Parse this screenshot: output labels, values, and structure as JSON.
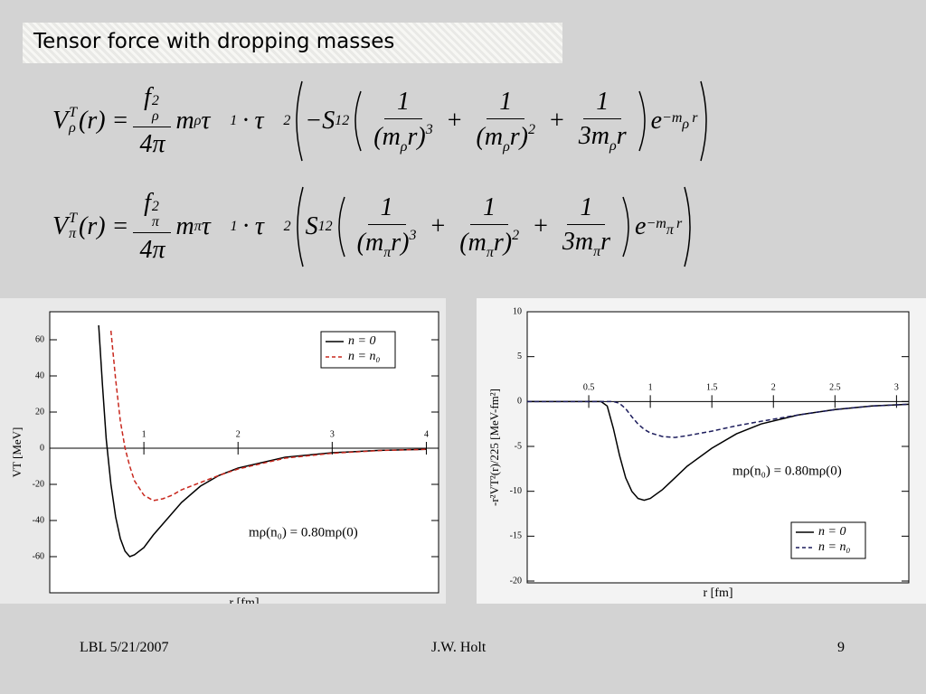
{
  "slide": {
    "title": "Tensor force with dropping masses",
    "footer": {
      "left": "LBL 5/21/2007",
      "center": "J.W. Holt",
      "right": "9"
    }
  },
  "equations": [
    {
      "lhs": "V",
      "lhs_sup": "T",
      "sub": "ρ",
      "arg": "(r) =",
      "coupling": "f",
      "square": "2",
      "denominator": "4π",
      "mass": "m",
      "tau": "τ⃗",
      "one": "1",
      "dot": "·",
      "two": "2",
      "operator": "−S",
      "operator_sub": "12",
      "open": "(m",
      "close": "r)",
      "cube": "3",
      "plus": "+",
      "three_m": "3m",
      "r": "r",
      "exp_base": "e",
      "exp_mass": "−m"
    },
    {
      "lhs": "V",
      "lhs_sup": "T",
      "sub": "π",
      "arg": "(r) =",
      "coupling": "f",
      "square": "2",
      "denominator": "4π",
      "mass": "m",
      "tau": "τ⃗",
      "one": "1",
      "dot": "·",
      "two": "2",
      "operator": "S",
      "operator_sub": "12",
      "open": "(m",
      "close": "r)",
      "cube": "3",
      "plus": "+",
      "three_m": "3m",
      "r": "r",
      "exp_base": "e",
      "exp_mass": "−m"
    }
  ],
  "chart_data": [
    {
      "type": "line",
      "x_label": "r  [fm]",
      "y_label": "VT  [MeV]",
      "annotation": "mρ(n₀) = 0.80mρ(0)",
      "x": [
        0.52,
        0.56,
        0.6,
        0.65,
        0.7,
        0.75,
        0.8,
        0.85,
        0.9,
        1.0,
        1.1,
        1.2,
        1.3,
        1.4,
        1.6,
        1.8,
        2.0,
        2.5,
        3.0,
        3.5,
        4.0
      ],
      "series": [
        {
          "name": "n = 0",
          "color": "#000000",
          "dash": "solid",
          "values": [
            68,
            35,
            5,
            -20,
            -38,
            -50,
            -57,
            -60,
            -59,
            -55,
            -48,
            -42,
            -36,
            -30,
            -21,
            -15,
            -11,
            -5,
            -2.5,
            -1.2,
            -0.6
          ]
        },
        {
          "name": "n = n₀",
          "color": "#c8281e",
          "dash": "dashed",
          "values": [
            null,
            null,
            null,
            65,
            38,
            15,
            0,
            -10,
            -18,
            -26,
            -29,
            -28,
            -26,
            -23,
            -19,
            -15,
            -11.5,
            -5.5,
            -2.8,
            -1.3,
            -0.6
          ]
        }
      ],
      "xlim": [
        0,
        4.13
      ],
      "ylim": [
        -80,
        75.5
      ],
      "xticks": [
        1,
        2,
        3,
        4
      ],
      "yticks": [
        -60,
        -40,
        -20,
        0,
        20,
        40,
        60
      ],
      "legend": "upper right"
    },
    {
      "type": "line",
      "x_label": "r  [fm]",
      "y_label": "-r²VT²(r)/225   [MeV-fm²]",
      "annotation": "mρ(n₀) = 0.80mρ(0)",
      "x": [
        0,
        0.25,
        0.5,
        0.6,
        0.65,
        0.7,
        0.75,
        0.8,
        0.85,
        0.9,
        0.95,
        1.0,
        1.1,
        1.2,
        1.3,
        1.5,
        1.7,
        1.9,
        2.2,
        2.5,
        2.8,
        3.1
      ],
      "series": [
        {
          "name": "n = 0",
          "color": "#000000",
          "dash": "solid",
          "values": [
            0,
            0,
            0,
            0,
            -0.5,
            -3,
            -6,
            -8.5,
            -10,
            -10.8,
            -11,
            -10.8,
            -9.8,
            -8.5,
            -7.2,
            -5.2,
            -3.6,
            -2.5,
            -1.5,
            -0.9,
            -0.5,
            -0.3
          ]
        },
        {
          "name": "n = n₀",
          "color": "#1c1c5c",
          "dash": "dashed",
          "values": [
            0,
            0,
            0,
            0,
            0,
            0,
            -0.2,
            -0.8,
            -1.7,
            -2.5,
            -3.1,
            -3.5,
            -3.9,
            -4.0,
            -3.8,
            -3.3,
            -2.7,
            -2.2,
            -1.5,
            -0.9,
            -0.5,
            -0.3
          ]
        }
      ],
      "xlim": [
        0,
        3.1
      ],
      "ylim": [
        -20.2,
        10
      ],
      "xticks": [
        0.5,
        1,
        1.5,
        2,
        2.5,
        3
      ],
      "yticks": [
        -20,
        -15,
        -10,
        -5,
        0,
        5,
        10
      ],
      "legend": "lower right"
    }
  ]
}
